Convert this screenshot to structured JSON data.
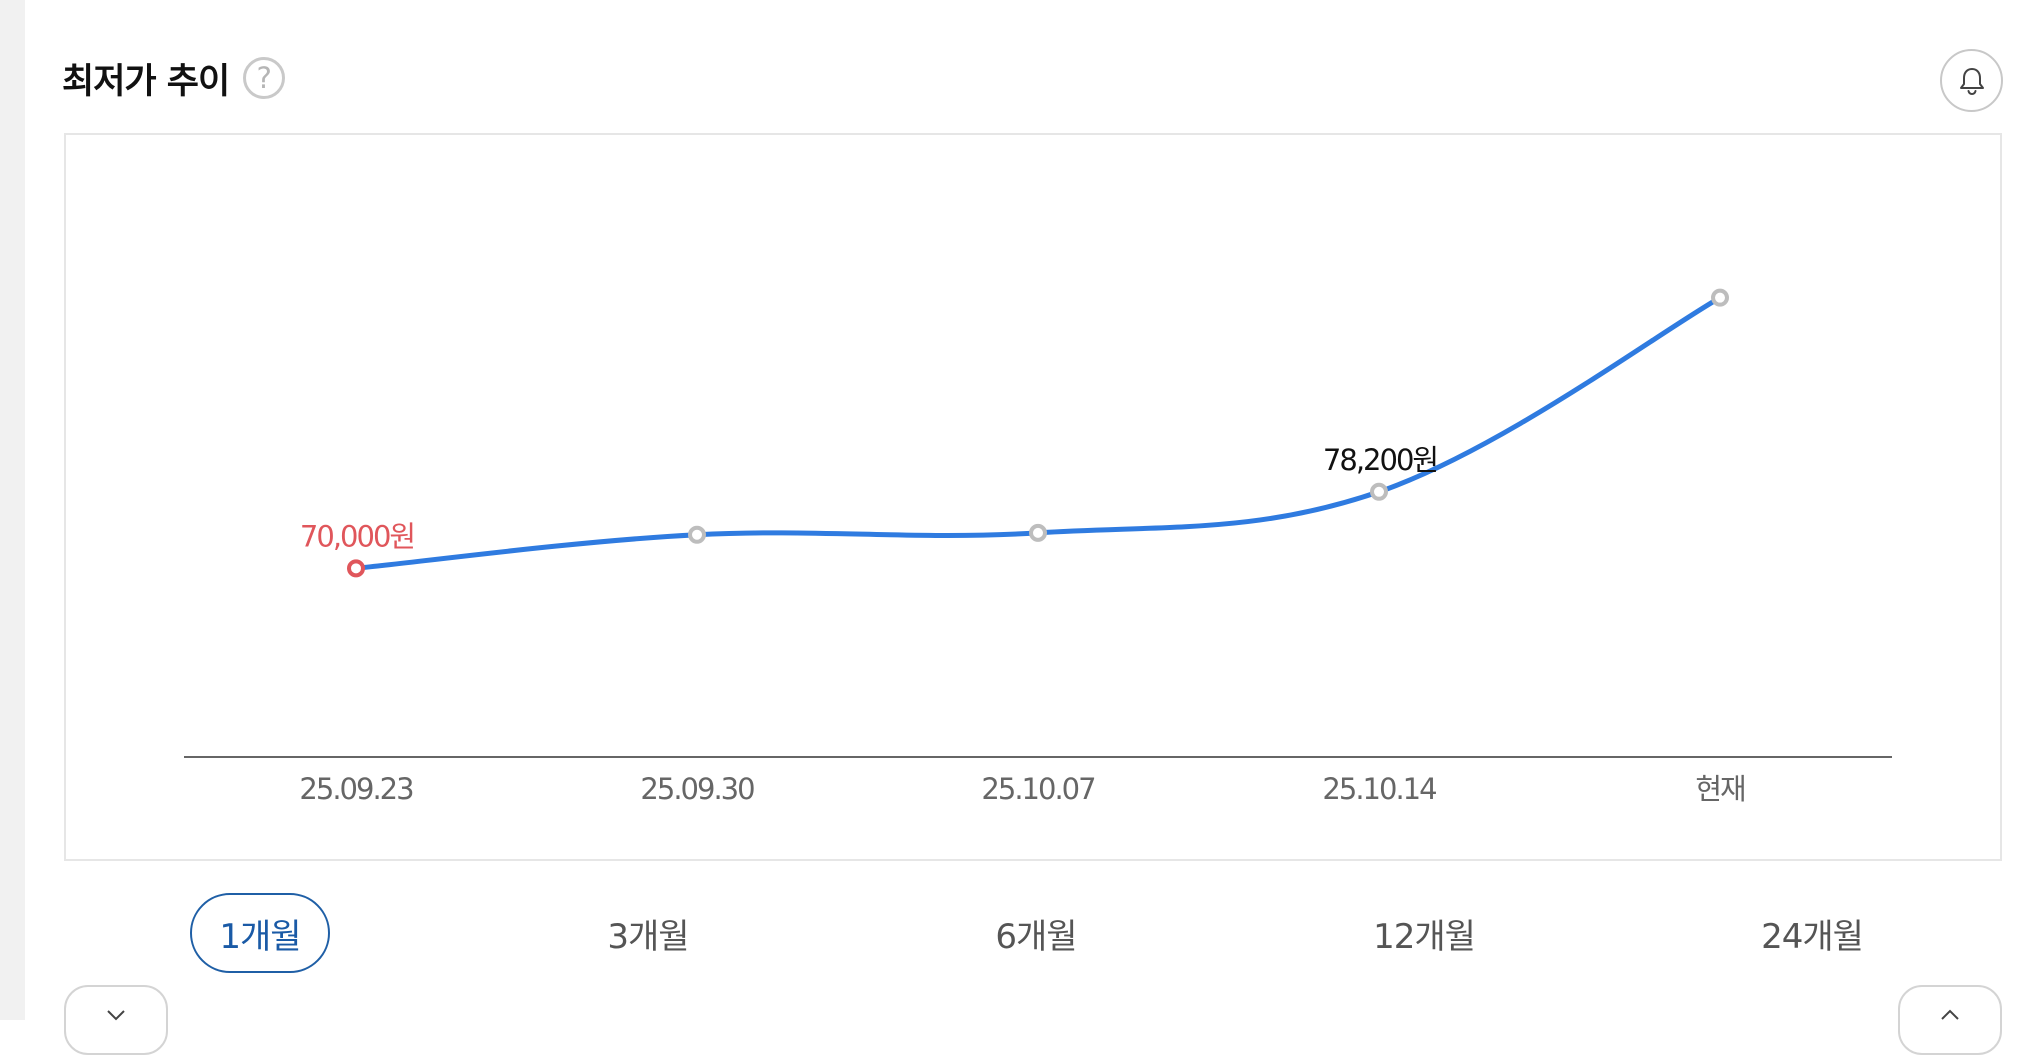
{
  "header": {
    "title": "최저가 추이",
    "help_icon": "question-circle-icon",
    "help_glyph": "?",
    "bell_icon": "bell-icon"
  },
  "chart_data": {
    "type": "line",
    "categories": [
      "25.09.23",
      "25.09.30",
      "25.10.07",
      "25.10.14",
      "현재"
    ],
    "values": [
      70000,
      73600,
      73800,
      78200,
      99000
    ],
    "point_labels": [
      {
        "index": 0,
        "text": "70,000원",
        "color": "#e0565b"
      },
      {
        "index": 3,
        "text": "78,200원",
        "color": "#111111"
      }
    ],
    "ylim": [
      50000,
      110000
    ],
    "line_color": "#2f7be0",
    "point_stroke_color": "#bdbdbd",
    "low_point_color": "#e0565b",
    "axis_color": "#666666",
    "grid": false,
    "title": "",
    "xlabel": "",
    "ylabel": ""
  },
  "period_tabs": [
    {
      "label": "1개월",
      "active": true
    },
    {
      "label": "3개월",
      "active": false
    },
    {
      "label": "6개월",
      "active": false
    },
    {
      "label": "12개월",
      "active": false
    },
    {
      "label": "24개월",
      "active": false
    }
  ],
  "colors": {
    "accent": "#1f5fa6",
    "tab_text": "#555555",
    "border": "#e6e6e6"
  },
  "footer_buttons": [
    {
      "icon": "chevron-down-icon"
    },
    {
      "icon": "chevron-up-icon"
    }
  ]
}
